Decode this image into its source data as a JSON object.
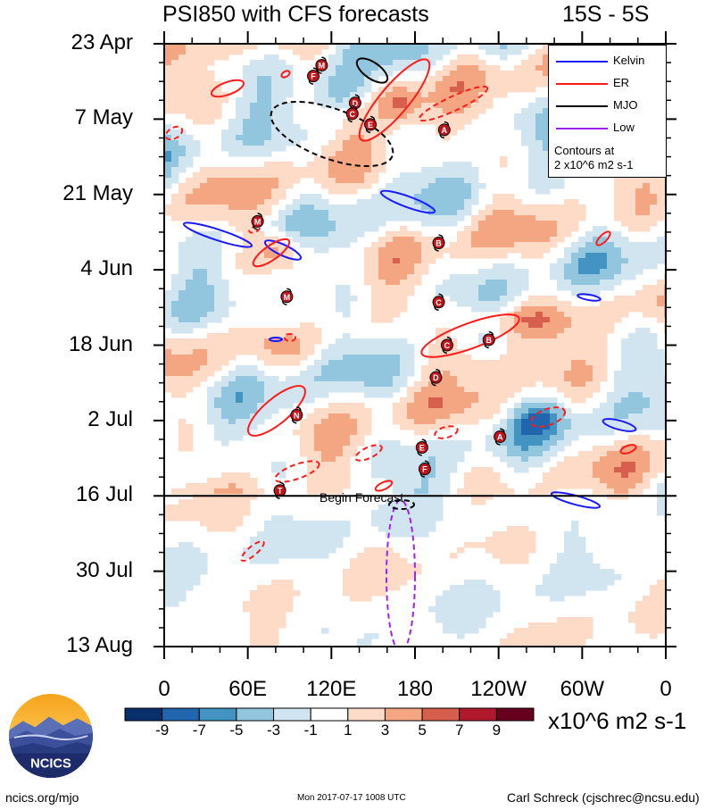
{
  "title_left": "PSI850 with CFS forecasts",
  "title_right": "15S - 5S",
  "begin_forecast": "Begin Forecast",
  "legend": {
    "items": [
      {
        "label": "Kelvin",
        "color": "#1a1aff",
        "style": "solid"
      },
      {
        "label": "ER",
        "color": "#ff1a1a",
        "style": "solid"
      },
      {
        "label": "MJO",
        "color": "#000000",
        "style": "solid"
      },
      {
        "label": "Low",
        "color": "#a020f0",
        "style": "solid"
      }
    ],
    "note": "Contours at\n2 x10^6 m2 s-1"
  },
  "colorbar": {
    "ticks": [
      "-9",
      "-7",
      "-5",
      "-3",
      "-1",
      "1",
      "3",
      "5",
      "7",
      "9"
    ],
    "units": "x10^6 m2 s-1",
    "colors": [
      "#08306b",
      "#2166ac",
      "#4393c3",
      "#92c5de",
      "#d1e5f0",
      "#ffffff",
      "#fddbc7",
      "#f4a582",
      "#d6604d",
      "#b2182b",
      "#67001f"
    ]
  },
  "footer": {
    "left": "ncics.org/mjo",
    "mid": "Mon 2017-07-17 1008 UTC",
    "right": "Carl Schreck (cjschrec@ncsu.edu)"
  },
  "logo_text": "NCICS",
  "chart_data": {
    "type": "heatmap",
    "title": "PSI850 with CFS forecasts",
    "subtitle": "15S - 5S",
    "x_ticks": [
      "0",
      "60E",
      "120E",
      "180",
      "120W",
      "60W",
      "0"
    ],
    "y_ticks": [
      "23 Apr",
      "7 May",
      "21 May",
      "4 Jun",
      "18 Jun",
      "2 Jul",
      "16 Jul",
      "30 Jul",
      "13 Aug"
    ],
    "x_range": [
      0,
      360
    ],
    "y_range": [
      "2017-04-23",
      "2017-08-13"
    ],
    "forecast_start": "2017-07-16",
    "storms": [
      {
        "label": "M",
        "lon": 113,
        "date": "2017-04-27"
      },
      {
        "label": "F",
        "lon": 107,
        "date": "2017-04-29"
      },
      {
        "label": "D",
        "lon": 137,
        "date": "2017-05-04"
      },
      {
        "label": "C",
        "lon": 135,
        "date": "2017-05-06"
      },
      {
        "label": "E",
        "lon": 148,
        "date": "2017-05-08"
      },
      {
        "label": "A",
        "lon": 201,
        "date": "2017-05-09"
      },
      {
        "label": "M",
        "lon": 67,
        "date": "2017-05-26"
      },
      {
        "label": "B",
        "lon": 197,
        "date": "2017-05-30"
      },
      {
        "label": "M",
        "lon": 88,
        "date": "2017-06-09"
      },
      {
        "label": "C",
        "lon": 197,
        "date": "2017-06-10"
      },
      {
        "label": "B",
        "lon": 233,
        "date": "2017-06-17"
      },
      {
        "label": "C",
        "lon": 203,
        "date": "2017-06-18"
      },
      {
        "label": "D",
        "lon": 195,
        "date": "2017-06-24"
      },
      {
        "label": "N",
        "lon": 95,
        "date": "2017-07-01"
      },
      {
        "label": "A",
        "lon": 241,
        "date": "2017-07-05"
      },
      {
        "label": "E",
        "lon": 185,
        "date": "2017-07-07"
      },
      {
        "label": "F",
        "lon": 187,
        "date": "2017-07-11"
      },
      {
        "label": "T",
        "lon": 83,
        "date": "2017-07-15"
      }
    ]
  }
}
